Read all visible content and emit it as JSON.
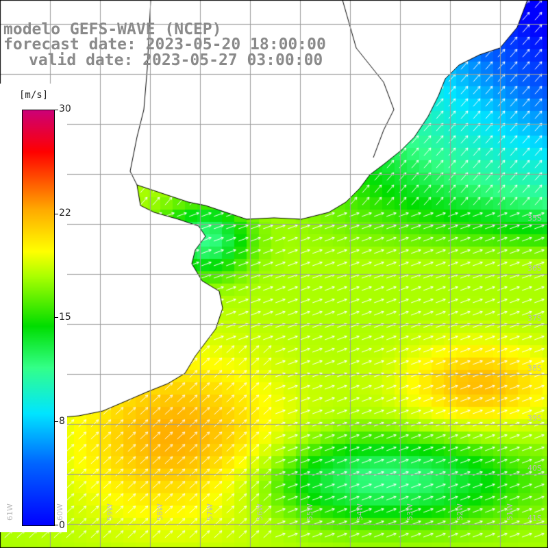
{
  "title": {
    "line1": "modelo GEFS-WAVE (NCEP)",
    "line2": "forecast date: 2023-05-20 18:00:00",
    "line3": "valid date: 2023-05-27 03:00:00"
  },
  "legend": {
    "unit": "[m/s]",
    "ticks": [
      {
        "label": "30",
        "value": 30
      },
      {
        "label": "22",
        "value": 22
      },
      {
        "label": "15",
        "value": 15
      },
      {
        "label": "8",
        "value": 8
      },
      {
        "label": "0",
        "value": 0
      }
    ],
    "min": 0,
    "max": 30
  },
  "axes": {
    "lon_labels": [
      "61W",
      "60W",
      "59W",
      "58W",
      "57W",
      "56W",
      "55W",
      "54W",
      "53W",
      "52W",
      "51W"
    ],
    "lat_labels": [
      "35S",
      "36S",
      "37S",
      "38S",
      "39S",
      "40S",
      "41S"
    ]
  },
  "colors": {
    "ocean_low": "#2b8cff",
    "ocean_mid": "#00e000",
    "ocean_high": "#ffa500",
    "coastline": "#000000",
    "grid": "#9a9a9a",
    "arrows": "#ffffff",
    "title_text": "#8a8a8a"
  }
}
